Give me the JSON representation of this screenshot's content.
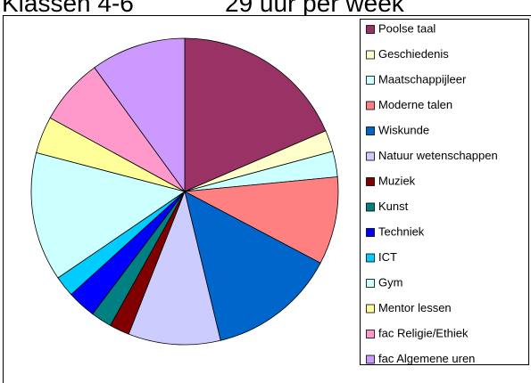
{
  "chart_data": {
    "type": "pie",
    "title": "Klassen 4-6",
    "subtitle": "29 uur per week",
    "categories": [
      "Poolse taal",
      "Geschiedenis",
      "Maatschappijleer",
      "Moderne talen",
      "Wiskunde",
      "Natuur wetenschappen",
      "Muziek",
      "Kunst",
      "Techniek",
      "ICT",
      "Gym",
      "Mentor lessen",
      "fac Religie/Ethiek",
      "fac Algemene uren"
    ],
    "values": [
      18.5,
      2.25,
      2.7,
      9.25,
      13.5,
      9.7,
      2.1,
      2.2,
      3,
      2.2,
      13.6,
      3.9,
      7,
      10
    ],
    "colors": [
      "#993366",
      "#ffffcc",
      "#ccffff",
      "#ff8080",
      "#0066cc",
      "#ccccff",
      "#800000",
      "#008080",
      "#0000ff",
      "#00ccff",
      "#ccffff",
      "#ffff99",
      "#ff99cc",
      "#cc99ff"
    ],
    "legend": "right"
  }
}
